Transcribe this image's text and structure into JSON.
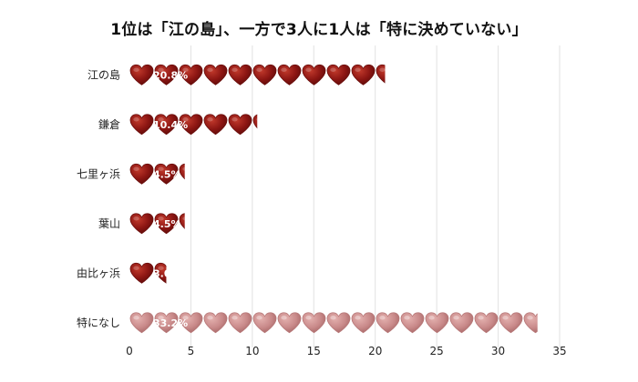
{
  "chart_data": {
    "type": "bar",
    "orientation": "horizontal",
    "title": "1位は「江の島」、一方で3人に1人は「特に決めていない」",
    "categories": [
      "江の島",
      "鎌倉",
      "七里ヶ浜",
      "葉山",
      "由比ヶ浜",
      "特になし"
    ],
    "values": [
      20.8,
      10.4,
      4.5,
      4.5,
      3.0,
      33.2
    ],
    "data_labels": [
      "20.8%",
      "10.4%",
      "4.5%",
      "4.5%",
      "3.0%",
      "33.2%"
    ],
    "xlim": [
      0,
      35
    ],
    "xticks": [
      0,
      5,
      10,
      15,
      20,
      25,
      30,
      35
    ],
    "grid": "vertical",
    "mark": "heart-icon",
    "colors": {
      "primary": "#8b1512",
      "primary_highlight": "#c0392b",
      "secondary": "#c98a8a",
      "secondary_highlight": "#e3b0ae",
      "grid": "#e2e2e2"
    }
  }
}
